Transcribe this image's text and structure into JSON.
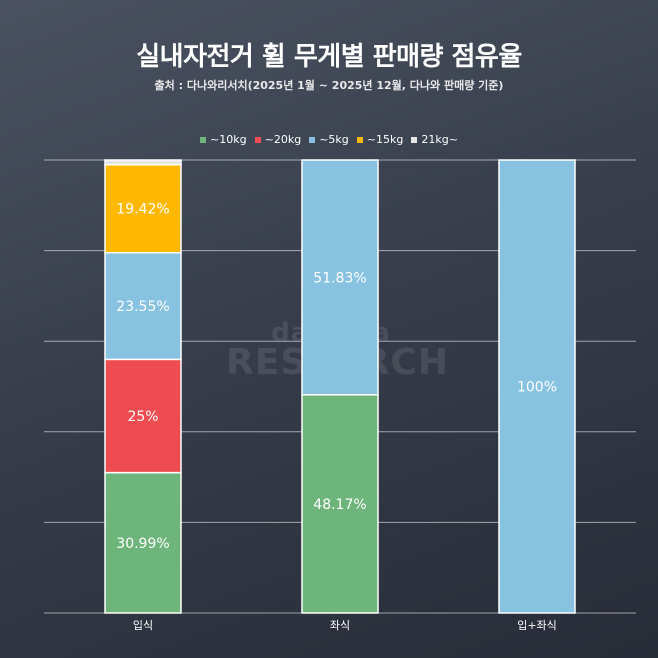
{
  "chart_data": {
    "type": "bar",
    "stacked": true,
    "title": "실내자전거 휠 무게별 판매량 점유율",
    "subtitle": "출처 : 다나와리서치(2025년 1월 ~ 2025년 12월, 다나와 판매량 기준)",
    "categories": [
      "입식",
      "좌식",
      "입+좌식"
    ],
    "ylim": [
      0,
      100
    ],
    "grid": true,
    "legend_position": "top-center",
    "series": [
      {
        "name": "~10kg",
        "color": "#6db57a",
        "values": [
          30.99,
          48.17,
          0
        ]
      },
      {
        "name": "~20kg",
        "color": "#ee4c50",
        "values": [
          25,
          0,
          0
        ]
      },
      {
        "name": "~5kg",
        "color": "#87c2e1",
        "values": [
          23.55,
          51.83,
          100
        ]
      },
      {
        "name": "~15kg",
        "color": "#ffb800",
        "values": [
          19.42,
          0,
          0
        ]
      },
      {
        "name": "21kg~",
        "color": "#e6e6e6",
        "values": [
          1.04,
          0,
          0
        ]
      }
    ],
    "data_labels": [
      [
        "30.99%",
        "",
        "",
        "",
        ""
      ],
      [
        "48.17%",
        "",
        "",
        "",
        ""
      ],
      [
        "",
        "",
        "100%",
        "",
        ""
      ]
    ],
    "data_labels_by_series": {
      "~10kg": [
        "30.99%",
        "48.17%",
        ""
      ],
      "~20kg": [
        "25%",
        "",
        ""
      ],
      "~5kg": [
        "23.55%",
        "51.83%",
        "100%"
      ],
      "~15kg": [
        "19.42%",
        "",
        ""
      ],
      "21kg~": [
        "",
        "",
        ""
      ]
    }
  },
  "legend_bullet": "▪",
  "watermark": {
    "top": "danawa",
    "bottom": "RESEARCH"
  }
}
